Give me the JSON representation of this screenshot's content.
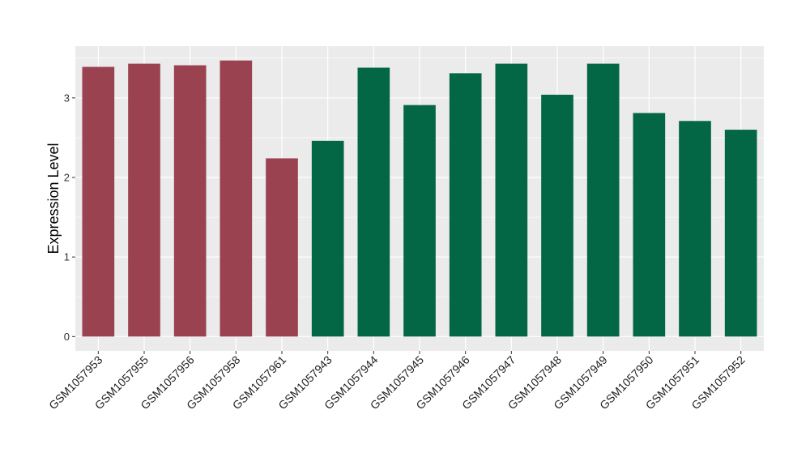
{
  "chart_data": {
    "type": "bar",
    "title": "",
    "xlabel": "",
    "ylabel": "Expression Level",
    "ylim": [
      -0.18,
      3.65
    ],
    "yticks": [
      0,
      1,
      2,
      3
    ],
    "grid": true,
    "legend": "none",
    "categories": [
      "GSM1057953",
      "GSM1057955",
      "GSM1057956",
      "GSM1057958",
      "GSM1057961",
      "GSM1057943",
      "GSM1057944",
      "GSM1057945",
      "GSM1057946",
      "GSM1057947",
      "GSM1057948",
      "GSM1057949",
      "GSM1057950",
      "GSM1057951",
      "GSM1057952"
    ],
    "values": [
      3.39,
      3.43,
      3.41,
      3.47,
      2.24,
      2.46,
      3.38,
      2.91,
      3.31,
      3.43,
      3.04,
      3.43,
      2.81,
      2.71,
      2.6
    ],
    "groups": [
      "group-1",
      "group-1",
      "group-1",
      "group-1",
      "group-1",
      "group-2",
      "group-2",
      "group-2",
      "group-2",
      "group-2",
      "group-2",
      "group-2",
      "group-2",
      "group-2",
      "group-2"
    ],
    "colors": {
      "group-1": "#9a4250",
      "group-2": "#036745",
      "panel_background": "#ebebeb",
      "gridline": "#ffffff"
    }
  }
}
